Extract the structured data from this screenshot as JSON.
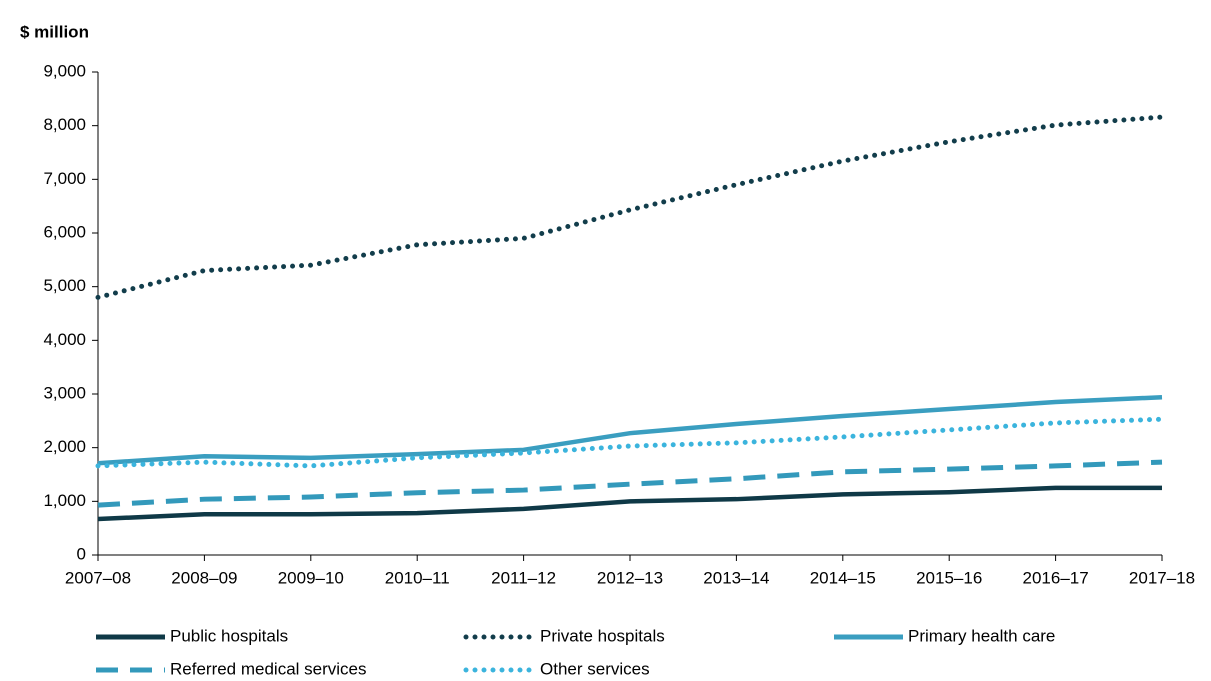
{
  "chart_data": {
    "type": "line",
    "y_axis_label": "$ million",
    "categories": [
      "2007–08",
      "2008–09",
      "2009–10",
      "2010–11",
      "2011–12",
      "2012–13",
      "2013–14",
      "2014–15",
      "2015–16",
      "2016–17",
      "2017–18"
    ],
    "series": [
      {
        "name": "Public hospitals",
        "color": "#0f3947",
        "style": "solid",
        "values": [
          670,
          760,
          760,
          780,
          860,
          1000,
          1040,
          1130,
          1170,
          1250,
          1250
        ]
      },
      {
        "name": "Private hospitals",
        "color": "#123d4b",
        "style": "dotted",
        "values": [
          4800,
          5300,
          5400,
          5780,
          5900,
          6430,
          6900,
          7340,
          7700,
          8010,
          8160
        ]
      },
      {
        "name": "Primary health care",
        "color": "#3a9ec0",
        "style": "solid",
        "values": [
          1710,
          1840,
          1810,
          1880,
          1960,
          2270,
          2440,
          2590,
          2720,
          2850,
          2940
        ]
      },
      {
        "name": "Referred medical services",
        "color": "#3399bb",
        "style": "dashed",
        "values": [
          930,
          1040,
          1080,
          1160,
          1210,
          1320,
          1420,
          1550,
          1600,
          1660,
          1730
        ]
      },
      {
        "name": "Other services",
        "color": "#3bb4dd",
        "style": "dotted",
        "values": [
          1660,
          1730,
          1660,
          1810,
          1900,
          2030,
          2090,
          2200,
          2330,
          2460,
          2530
        ]
      }
    ],
    "ylim": [
      0,
      9000
    ],
    "yticks": [
      0,
      {
        "value": 1000,
        "label": "1,000"
      },
      {
        "value": 2000,
        "label": "2,000"
      },
      {
        "value": 3000,
        "label": "3,000"
      },
      {
        "value": 4000,
        "label": "4,000"
      },
      {
        "value": 5000,
        "label": "5,000"
      },
      {
        "value": 6000,
        "label": "6,000"
      },
      {
        "value": 7000,
        "label": "7,000"
      },
      {
        "value": 8000,
        "label": "8,000"
      },
      {
        "value": 9000,
        "label": "9,000"
      }
    ],
    "grid": false
  }
}
